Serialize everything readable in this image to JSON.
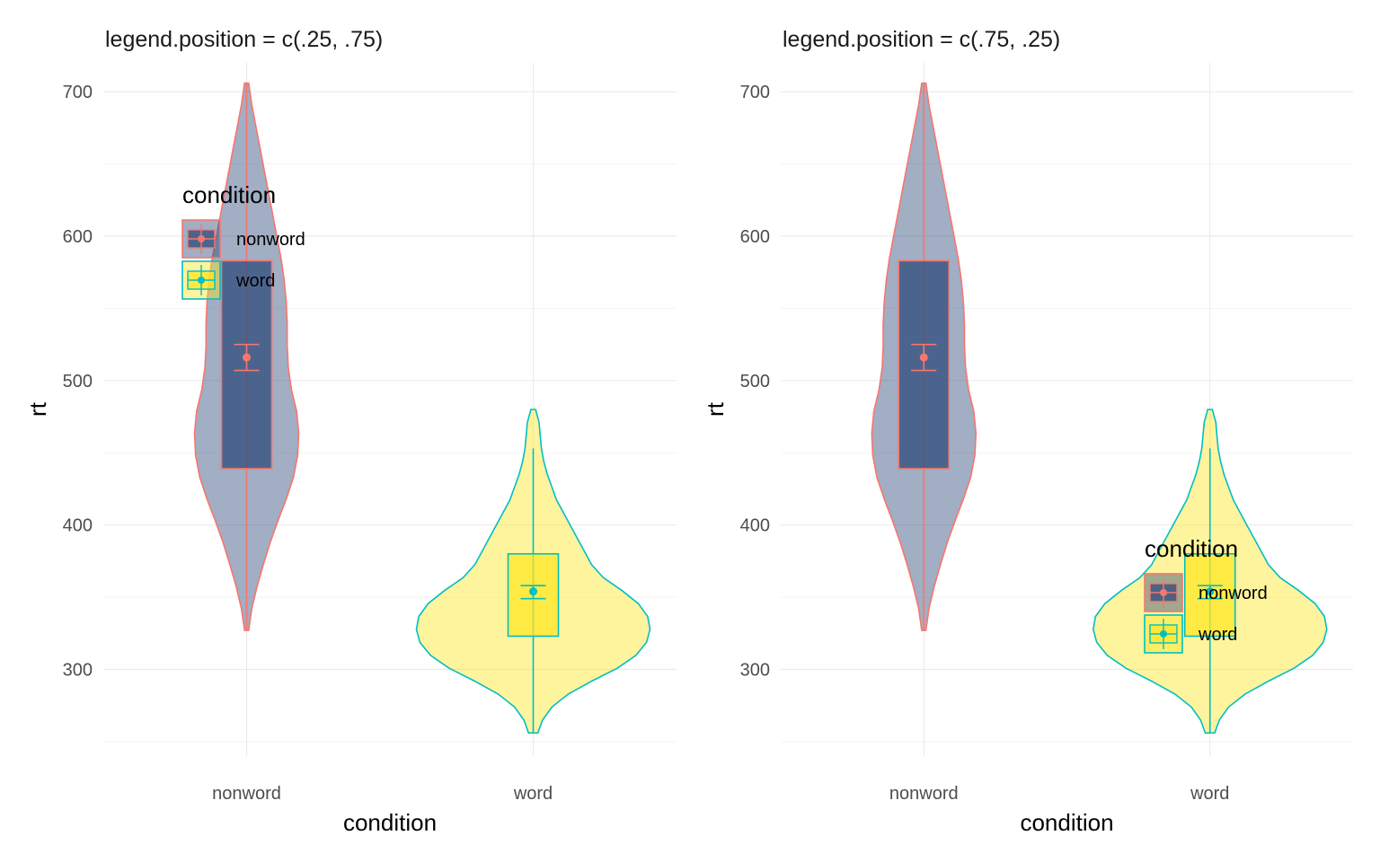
{
  "chart_data": [
    {
      "type": "violin",
      "title": "legend.position = c(.25, .75)",
      "xlabel": "condition",
      "ylabel": "rt",
      "categories": [
        "nonword",
        "word"
      ],
      "ylim": [
        240,
        720
      ],
      "yticks": [
        300,
        400,
        500,
        600,
        700
      ],
      "grid": true,
      "legend": {
        "title": "condition",
        "position": "c(.25, .75)",
        "entries": [
          "nonword",
          "word"
        ]
      },
      "series": [
        {
          "name": "nonword",
          "violin_min": 327,
          "violin_max": 706,
          "box": {
            "q1": 439,
            "q3": 583,
            "whisker_low": 327,
            "whisker_high": 706
          },
          "mean": 516,
          "ci": [
            507,
            525
          ],
          "fill": "#2f4b7c",
          "line": "#f8766d"
        },
        {
          "name": "word",
          "violin_min": 256,
          "violin_max": 480,
          "box": {
            "q1": 323,
            "q3": 380,
            "whisker_low": 256,
            "whisker_high": 453
          },
          "mean": 354,
          "ci": [
            349,
            358
          ],
          "fill": "#fde725",
          "line": "#00bfc4"
        }
      ]
    },
    {
      "type": "violin",
      "title": "legend.position = c(.75, .25)",
      "xlabel": "condition",
      "ylabel": "rt",
      "categories": [
        "nonword",
        "word"
      ],
      "ylim": [
        240,
        720
      ],
      "yticks": [
        300,
        400,
        500,
        600,
        700
      ],
      "grid": true,
      "legend": {
        "title": "condition",
        "position": "c(.75, .25)",
        "entries": [
          "nonword",
          "word"
        ]
      },
      "series": [
        {
          "name": "nonword",
          "violin_min": 327,
          "violin_max": 706,
          "box": {
            "q1": 439,
            "q3": 583,
            "whisker_low": 327,
            "whisker_high": 706
          },
          "mean": 516,
          "ci": [
            507,
            525
          ],
          "fill": "#2f4b7c",
          "line": "#f8766d"
        },
        {
          "name": "word",
          "violin_min": 256,
          "violin_max": 480,
          "box": {
            "q1": 323,
            "q3": 380,
            "whisker_low": 256,
            "whisker_high": 453
          },
          "mean": 354,
          "ci": [
            349,
            358
          ],
          "fill": "#fde725",
          "line": "#00bfc4"
        }
      ]
    }
  ]
}
